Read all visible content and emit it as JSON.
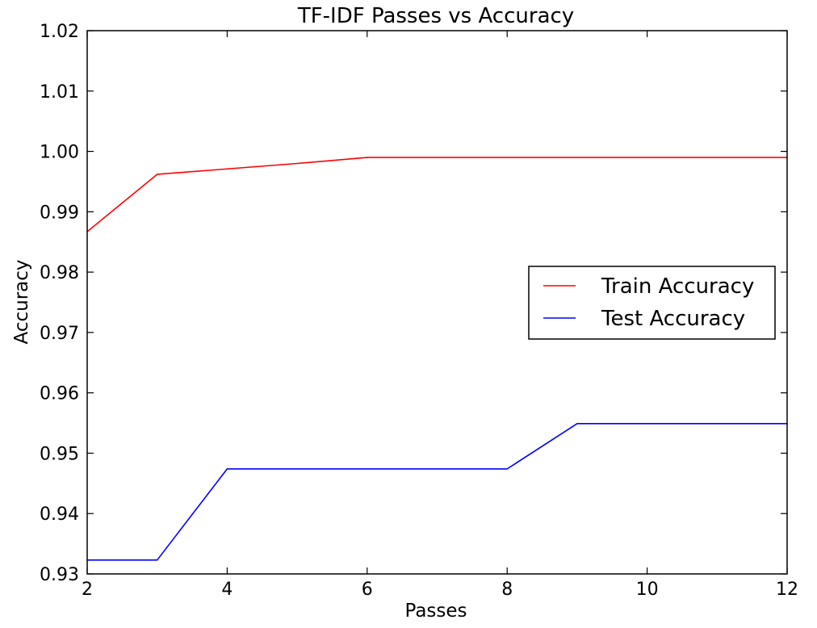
{
  "chart_data": {
    "type": "line",
    "title": "TF-IDF Passes vs Accuracy",
    "xlabel": "Passes",
    "ylabel": "Accuracy",
    "xlim": [
      2,
      12
    ],
    "ylim": [
      0.93,
      1.02
    ],
    "x_ticks": [
      2,
      4,
      6,
      8,
      10,
      12
    ],
    "x_tick_labels": [
      "2",
      "4",
      "6",
      "8",
      "10",
      "12"
    ],
    "y_ticks": [
      0.93,
      0.94,
      0.95,
      0.96,
      0.97,
      0.98,
      0.99,
      1.0,
      1.01,
      1.02
    ],
    "y_tick_labels": [
      "0.93",
      "0.94",
      "0.95",
      "0.96",
      "0.97",
      "0.98",
      "0.99",
      "1.00",
      "1.01",
      "1.02"
    ],
    "grid": false,
    "legend_position": "center-right",
    "series": [
      {
        "name": "Train Accuracy",
        "color": "#ff0000",
        "x": [
          2,
          3,
          4,
          5,
          6,
          7,
          8,
          9,
          10,
          11,
          12
        ],
        "y": [
          0.9867,
          0.9962,
          0.9971,
          0.998,
          0.999,
          0.999,
          0.999,
          0.999,
          0.999,
          0.999,
          0.999
        ]
      },
      {
        "name": "Test Accuracy",
        "color": "#0000ff",
        "x": [
          2,
          3,
          4,
          5,
          6,
          7,
          8,
          9,
          10,
          11,
          12
        ],
        "y": [
          0.9323,
          0.9323,
          0.9474,
          0.9474,
          0.9474,
          0.9474,
          0.9474,
          0.9549,
          0.9549,
          0.9549,
          0.9549
        ]
      }
    ]
  }
}
